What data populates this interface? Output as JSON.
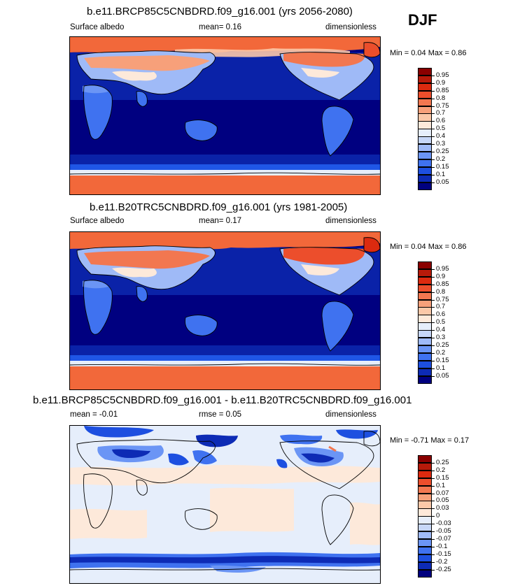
{
  "season": "DJF",
  "colors": {
    "seq": [
      "#00007f",
      "#0d2bb5",
      "#1d4fe0",
      "#3f72f0",
      "#6b95f5",
      "#9fbaf7",
      "#c7d7f8",
      "#e6eefb",
      "#fde9da",
      "#fbc8a8",
      "#f7a07a",
      "#f27750",
      "#ec4e2c",
      "#dc2a0f",
      "#b71a0a",
      "#8a0000"
    ],
    "div": [
      "#00007f",
      "#0d2bb5",
      "#1d4fe0",
      "#3f72f0",
      "#6b95f5",
      "#9fbaf7",
      "#c7d7f8",
      "#e6eefb",
      "#fde9da",
      "#fbc8a8",
      "#f7a07a",
      "#f27750",
      "#ec4e2c",
      "#dc2a0f",
      "#b71a0a",
      "#8a0000"
    ]
  },
  "panels": [
    {
      "title": "b.e11.BRCP85C5CNBDRD.f09_g16.001 (yrs 2056-2080)",
      "left_label": "Surface albedo",
      "mid_label": "mean=   0.16",
      "right_label": "dimensionless",
      "minmax": "Min =   0.04 Max =   0.86",
      "colorbar": {
        "levels": [
          "0.05",
          "0.1",
          "0.15",
          "0.2",
          "0.25",
          "0.3",
          "0.4",
          "0.5",
          "0.6",
          "0.7",
          "0.75",
          "0.8",
          "0.85",
          "0.9",
          "0.95"
        ]
      }
    },
    {
      "title": "b.e11.B20TRC5CNBDRD.f09_g16.001 (yrs 1981-2005)",
      "left_label": "Surface albedo",
      "mid_label": "mean=   0.17",
      "right_label": "dimensionless",
      "minmax": "Min =   0.04 Max =   0.86",
      "colorbar": {
        "levels": [
          "0.05",
          "0.1",
          "0.15",
          "0.2",
          "0.25",
          "0.3",
          "0.4",
          "0.5",
          "0.6",
          "0.7",
          "0.75",
          "0.8",
          "0.85",
          "0.9",
          "0.95"
        ]
      }
    },
    {
      "title": "b.e11.BRCP85C5CNBDRD.f09_g16.001 - b.e11.B20TRC5CNBDRD.f09_g16.001",
      "left_label": "mean =   -0.01",
      "mid_label": "rmse =   0.05",
      "right_label": "dimensionless",
      "minmax": "Min =  -0.71 Max =   0.17",
      "colorbar": {
        "levels": [
          "-0.25",
          "-0.2",
          "-0.15",
          "-0.1",
          "-0.07",
          "-0.05",
          "-0.03",
          "0",
          "0.03",
          "0.05",
          "0.07",
          "0.1",
          "0.15",
          "0.2",
          "0.25"
        ]
      }
    }
  ]
}
